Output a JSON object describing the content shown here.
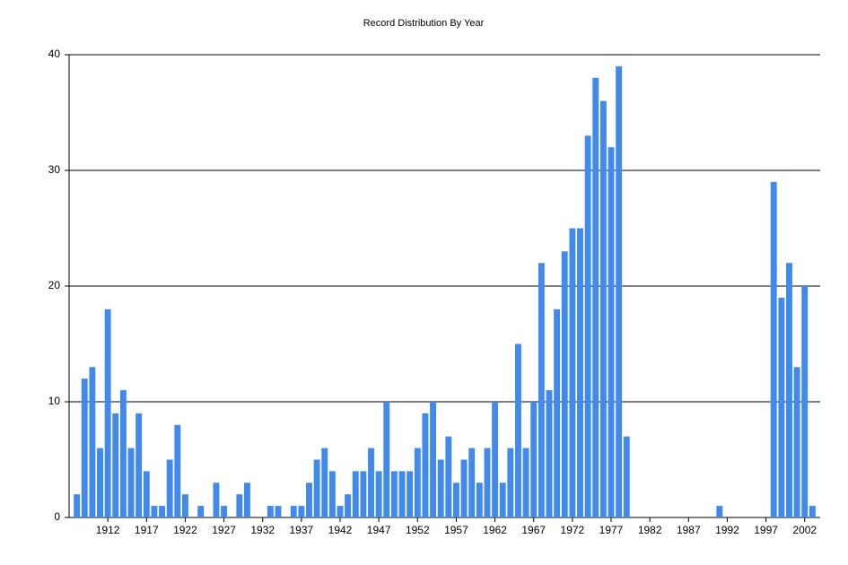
{
  "chart_data": {
    "type": "bar",
    "title": "Record Distribution By Year",
    "categories": [
      null,
      null,
      null,
      null,
      "1912",
      null,
      null,
      null,
      null,
      "1917",
      null,
      null,
      null,
      null,
      "1922",
      null,
      null,
      null,
      null,
      "1927",
      null,
      null,
      null,
      null,
      "1932",
      null,
      null,
      null,
      null,
      "1937",
      null,
      null,
      null,
      null,
      "1942",
      null,
      null,
      null,
      null,
      "1947",
      null,
      null,
      null,
      null,
      "1952",
      null,
      null,
      null,
      null,
      "1957",
      null,
      null,
      null,
      null,
      "1962",
      null,
      null,
      null,
      null,
      "1967",
      null,
      null,
      null,
      null,
      "1972",
      null,
      null,
      null,
      null,
      "1977",
      null,
      null,
      null,
      null,
      "1982",
      null,
      null,
      null,
      null,
      "1987",
      null,
      null,
      null,
      null,
      "1992",
      null,
      null,
      null,
      null,
      "1997",
      null,
      null,
      null,
      null,
      "2002",
      null
    ],
    "values": [
      2,
      12,
      13,
      6,
      18,
      9,
      11,
      6,
      9,
      4,
      1,
      1,
      5,
      8,
      2,
      0,
      1,
      0,
      3,
      1,
      0,
      2,
      3,
      0,
      0,
      1,
      1,
      0,
      1,
      1,
      3,
      5,
      6,
      4,
      1,
      2,
      4,
      4,
      6,
      4,
      10,
      4,
      4,
      4,
      6,
      9,
      10,
      5,
      7,
      3,
      5,
      6,
      3,
      6,
      10,
      3,
      6,
      15,
      6,
      10,
      22,
      11,
      18,
      23,
      25,
      25,
      33,
      38,
      36,
      32,
      39,
      7,
      0,
      0,
      0,
      0,
      0,
      0,
      0,
      0,
      0,
      0,
      0,
      1,
      0,
      0,
      0,
      0,
      0,
      0,
      29,
      19,
      22,
      13,
      20,
      1
    ],
    "color": "#4189ea",
    "ylim": [
      0,
      40
    ],
    "yticks": [
      0,
      10,
      20,
      30,
      40
    ],
    "grid": true
  }
}
